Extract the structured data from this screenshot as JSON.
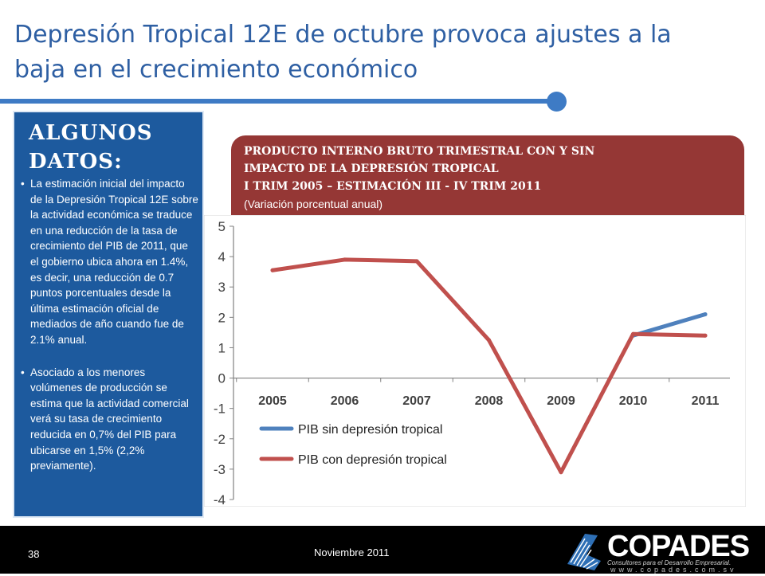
{
  "slide": {
    "title_line1": "Depresión Tropical 12E de octubre provoca ajustes a la",
    "title_line2": "baja en el crecimiento económico"
  },
  "sidebar": {
    "heading_line1": "ALGUNOS",
    "heading_line2": "DATOS:",
    "bullets": [
      "La estimación inicial del impacto de  la Depresión Tropical 12E sobre la actividad económica se traduce en una reducción de la tasa de crecimiento del PIB de 2011, que el gobierno ubica ahora en 1.4%, es decir, una reducción de 0.7 puntos porcentuales desde la última estimación oficial de mediados de año cuando fue de 2.1% anual.",
      "Asociado a los menores volúmenes de producción se estima que la actividad comercial verá su tasa de crecimiento reducida en 0,7% del PIB para ubicarse en 1,5% (2,2% previamente)."
    ]
  },
  "chart_header": {
    "line1": "PRODUCTO INTERNO BRUTO TRIMESTRAL CON Y SIN",
    "line2": "IMPACTO DE LA DEPRESIÓN TROPICAL",
    "line3": " I TRIM 2005 – ESTIMACIÓN III - IV TRIM 2011",
    "subtitle": "(Variación porcentual anual)"
  },
  "chart_data": {
    "type": "line",
    "title": "PRODUCTO INTERNO BRUTO TRIMESTRAL CON Y SIN IMPACTO DE LA DEPRESIÓN TROPICAL I TRIM 2005 – ESTIMACIÓN III - IV TRIM 2011",
    "subtitle": "(Variación porcentual anual)",
    "categories": [
      "2005",
      "2006",
      "2007",
      "2008",
      "2009",
      "2010",
      "2011"
    ],
    "yticks": [
      "5",
      "4",
      "3",
      "2",
      "1",
      "0",
      "-1",
      "-2",
      "-3",
      "-4"
    ],
    "ylim": [
      -4,
      5
    ],
    "grid": false,
    "legend_position": "bottom-left",
    "series": [
      {
        "name": "PIB sin depresión tropical",
        "color": "#4f81bd",
        "values": [
          null,
          null,
          null,
          null,
          null,
          1.4,
          2.1
        ]
      },
      {
        "name": "PIB con depresión tropical",
        "color": "#c0504d",
        "values": [
          3.55,
          3.9,
          3.85,
          1.25,
          -3.1,
          1.45,
          1.4
        ]
      }
    ]
  },
  "footer": {
    "page_number": "38",
    "date": "Noviembre 2011",
    "logo_name": "COPADES",
    "logo_tagline": "Consultores para el Desarrollo Empresarial.",
    "logo_url": "www.copades.com.sv"
  }
}
